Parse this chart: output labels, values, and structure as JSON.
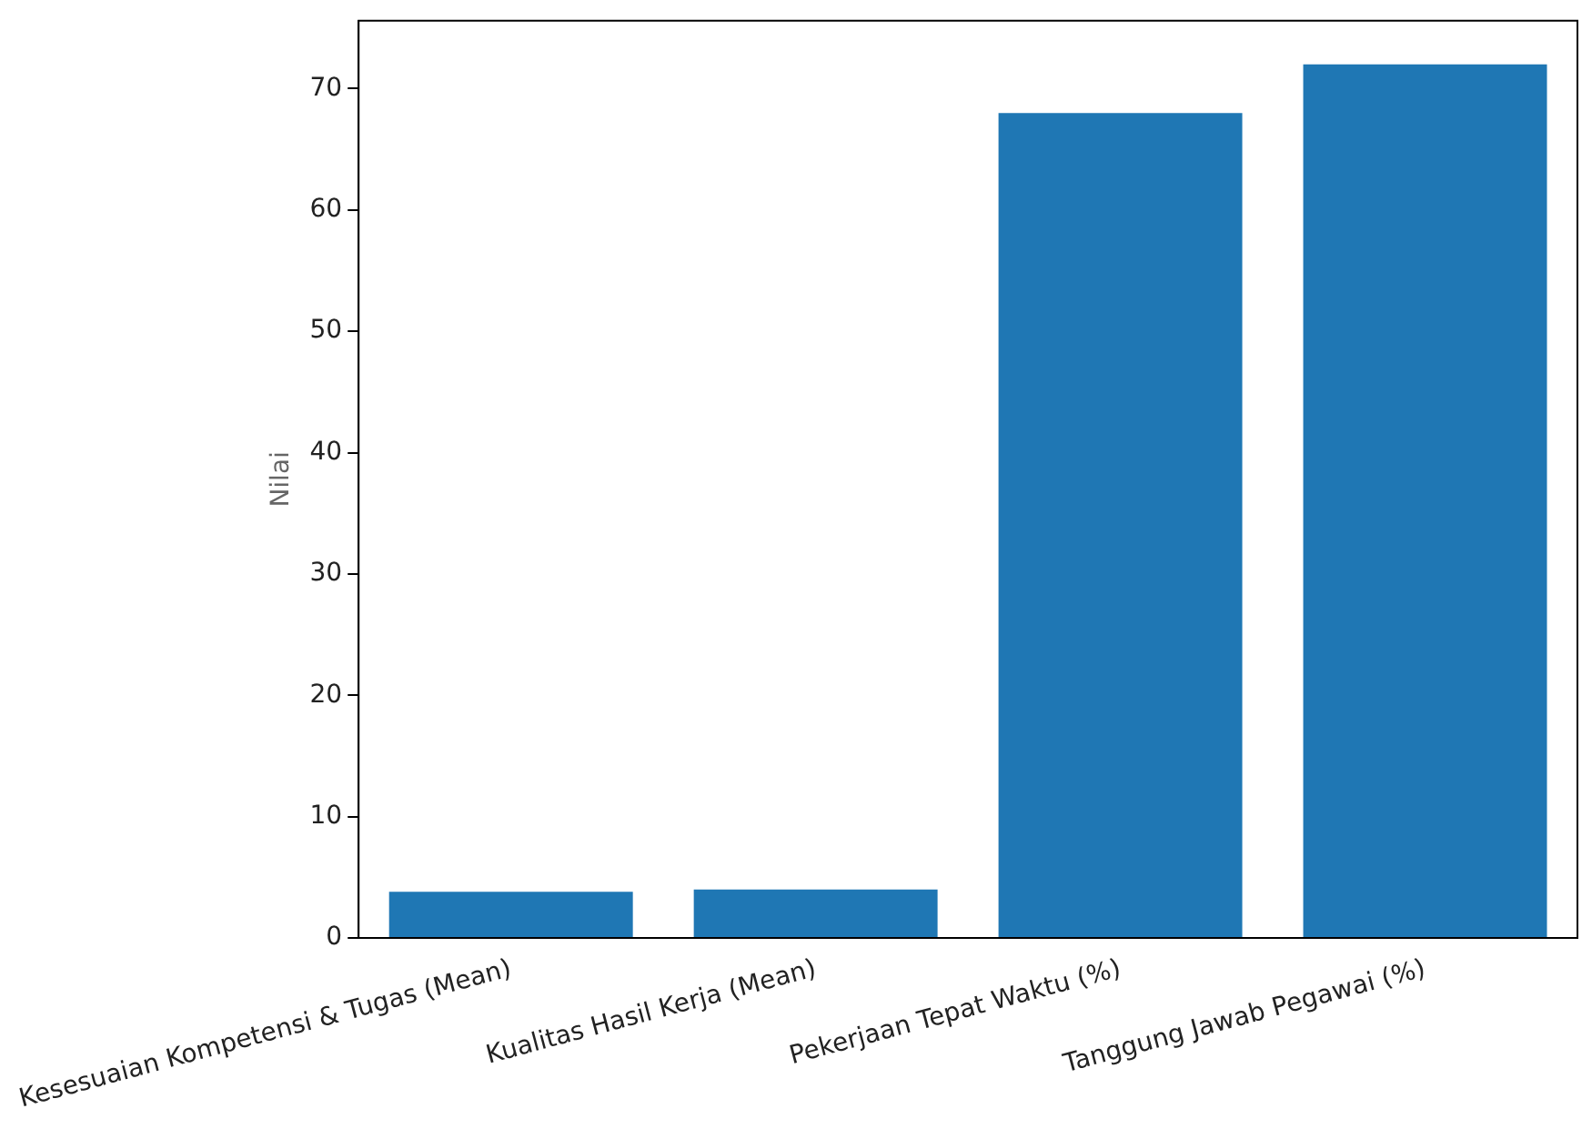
{
  "chart_data": {
    "type": "bar",
    "ylabel": "Nilai",
    "categories": [
      "Kesesuaian Kompetensi & Tugas (Mean)",
      "Kualitas Hasil Kerja (Mean)",
      "Pekerjaan Tepat Waktu (%)",
      "Tanggung Jawab Pegawai (%)"
    ],
    "values": [
      3.8,
      4.0,
      68,
      72
    ],
    "color": "#1f77b4",
    "ylim": [
      0,
      75.6
    ],
    "yticks": [
      0,
      10,
      20,
      30,
      40,
      50,
      60,
      70
    ],
    "grid": false,
    "legend": false
  }
}
